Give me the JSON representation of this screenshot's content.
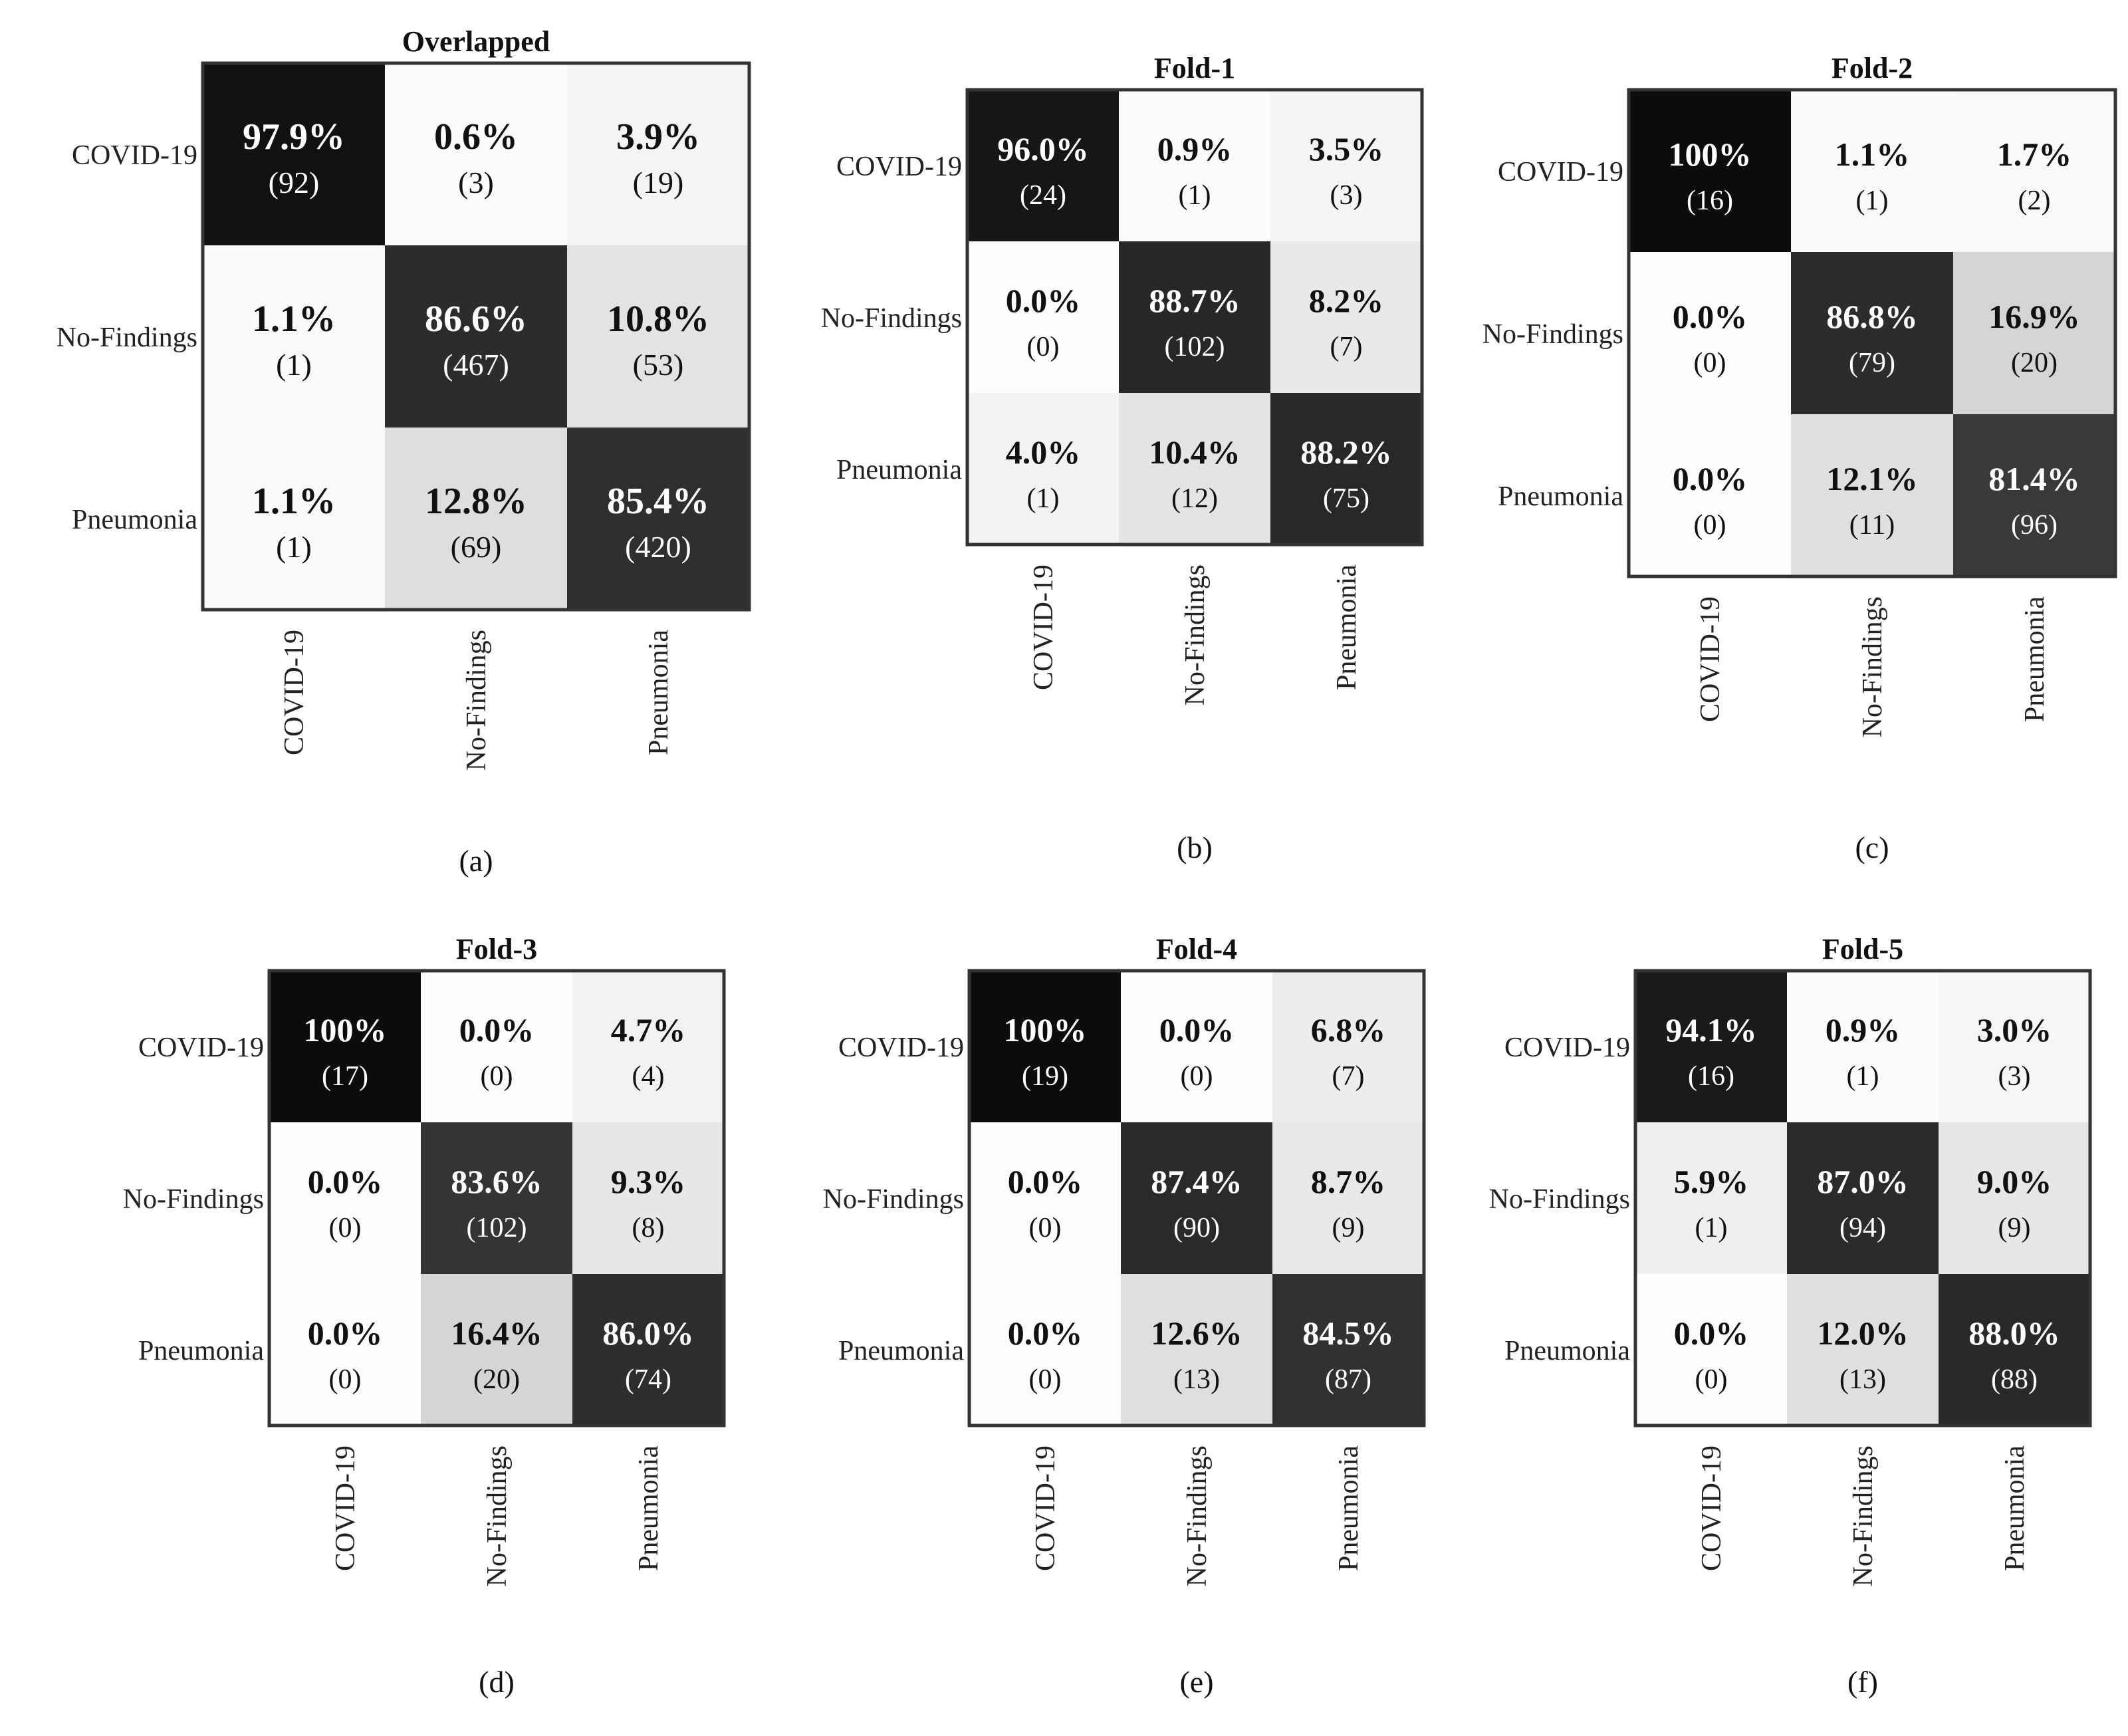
{
  "chart_data": [
    {
      "type": "heatmap",
      "title": "Overlapped",
      "caption": "(a)",
      "row_labels": [
        "COVID-19",
        "No-Findings",
        "Pneumonia"
      ],
      "col_labels": [
        "COVID-19",
        "No-Findings",
        "Pneumonia"
      ],
      "percent_labels": [
        [
          "97.9%",
          "0.6%",
          "3.9%"
        ],
        [
          "1.1%",
          "86.6%",
          "10.8%"
        ],
        [
          "1.1%",
          "12.8%",
          "85.4%"
        ]
      ],
      "count_labels": [
        [
          "(92)",
          "(3)",
          "(19)"
        ],
        [
          "(1)",
          "(467)",
          "(53)"
        ],
        [
          "(1)",
          "(69)",
          "(420)"
        ]
      ],
      "values": [
        [
          97.9,
          0.6,
          3.9
        ],
        [
          1.1,
          86.6,
          10.8
        ],
        [
          1.1,
          12.8,
          85.4
        ]
      ]
    },
    {
      "type": "heatmap",
      "title": "Fold-1",
      "caption": "(b)",
      "row_labels": [
        "COVID-19",
        "No-Findings",
        "Pneumonia"
      ],
      "col_labels": [
        "COVID-19",
        "No-Findings",
        "Pneumonia"
      ],
      "percent_labels": [
        [
          "96.0%",
          "0.9%",
          "3.5%"
        ],
        [
          "0.0%",
          "88.7%",
          "8.2%"
        ],
        [
          "4.0%",
          "10.4%",
          "88.2%"
        ]
      ],
      "count_labels": [
        [
          "(24)",
          "(1)",
          "(3)"
        ],
        [
          "(0)",
          "(102)",
          "(7)"
        ],
        [
          "(1)",
          "(12)",
          "(75)"
        ]
      ],
      "values": [
        [
          96.0,
          0.9,
          3.5
        ],
        [
          0.0,
          88.7,
          8.2
        ],
        [
          4.0,
          10.4,
          88.2
        ]
      ]
    },
    {
      "type": "heatmap",
      "title": "Fold-2",
      "caption": "(c)",
      "row_labels": [
        "COVID-19",
        "No-Findings",
        "Pneumonia"
      ],
      "col_labels": [
        "COVID-19",
        "No-Findings",
        "Pneumonia"
      ],
      "percent_labels": [
        [
          "100%",
          "1.1%",
          "1.7%"
        ],
        [
          "0.0%",
          "86.8%",
          "16.9%"
        ],
        [
          "0.0%",
          "12.1%",
          "81.4%"
        ]
      ],
      "count_labels": [
        [
          "(16)",
          "(1)",
          "(2)"
        ],
        [
          "(0)",
          "(79)",
          "(20)"
        ],
        [
          "(0)",
          "(11)",
          "(96)"
        ]
      ],
      "values": [
        [
          100,
          1.1,
          1.7
        ],
        [
          0.0,
          86.8,
          16.9
        ],
        [
          0.0,
          12.1,
          81.4
        ]
      ]
    },
    {
      "type": "heatmap",
      "title": "Fold-3",
      "caption": "(d)",
      "row_labels": [
        "COVID-19",
        "No-Findings",
        "Pneumonia"
      ],
      "col_labels": [
        "COVID-19",
        "No-Findings",
        "Pneumonia"
      ],
      "percent_labels": [
        [
          "100%",
          "0.0%",
          "4.7%"
        ],
        [
          "0.0%",
          "83.6%",
          "9.3%"
        ],
        [
          "0.0%",
          "16.4%",
          "86.0%"
        ]
      ],
      "count_labels": [
        [
          "(17)",
          "(0)",
          "(4)"
        ],
        [
          "(0)",
          "(102)",
          "(8)"
        ],
        [
          "(0)",
          "(20)",
          "(74)"
        ]
      ],
      "values": [
        [
          100,
          0.0,
          4.7
        ],
        [
          0.0,
          83.6,
          9.3
        ],
        [
          0.0,
          16.4,
          86.0
        ]
      ]
    },
    {
      "type": "heatmap",
      "title": "Fold-4",
      "caption": "(e)",
      "row_labels": [
        "COVID-19",
        "No-Findings",
        "Pneumonia"
      ],
      "col_labels": [
        "COVID-19",
        "No-Findings",
        "Pneumonia"
      ],
      "percent_labels": [
        [
          "100%",
          "0.0%",
          "6.8%"
        ],
        [
          "0.0%",
          "87.4%",
          "8.7%"
        ],
        [
          "0.0%",
          "12.6%",
          "84.5%"
        ]
      ],
      "count_labels": [
        [
          "(19)",
          "(0)",
          "(7)"
        ],
        [
          "(0)",
          "(90)",
          "(9)"
        ],
        [
          "(0)",
          "(13)",
          "(87)"
        ]
      ],
      "values": [
        [
          100,
          0.0,
          6.8
        ],
        [
          0.0,
          87.4,
          8.7
        ],
        [
          0.0,
          12.6,
          84.5
        ]
      ]
    },
    {
      "type": "heatmap",
      "title": "Fold-5",
      "caption": "(f)",
      "row_labels": [
        "COVID-19",
        "No-Findings",
        "Pneumonia"
      ],
      "col_labels": [
        "COVID-19",
        "No-Findings",
        "Pneumonia"
      ],
      "percent_labels": [
        [
          "94.1%",
          "0.9%",
          "3.0%"
        ],
        [
          "5.9%",
          "87.0%",
          "9.0%"
        ],
        [
          "0.0%",
          "12.0%",
          "88.0%"
        ]
      ],
      "count_labels": [
        [
          "(16)",
          "(1)",
          "(3)"
        ],
        [
          "(1)",
          "(94)",
          "(9)"
        ],
        [
          "(0)",
          "(13)",
          "(88)"
        ]
      ],
      "values": [
        [
          94.1,
          0.9,
          3.0
        ],
        [
          5.9,
          87.0,
          9.0
        ],
        [
          0.0,
          12.0,
          88.0
        ]
      ]
    }
  ]
}
